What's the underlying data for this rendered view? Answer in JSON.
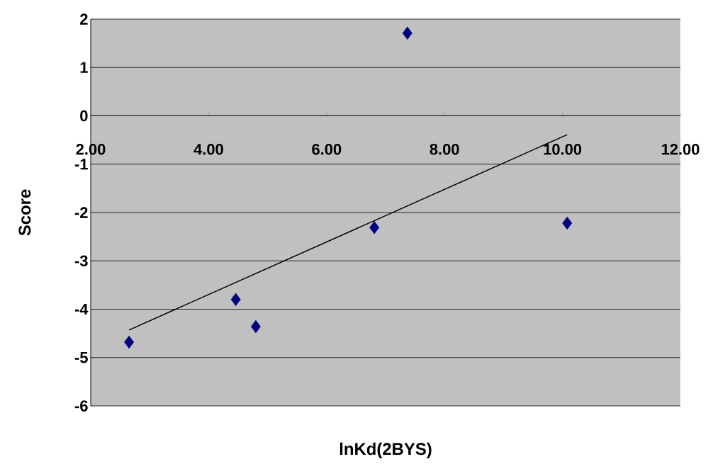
{
  "chart_data": {
    "type": "scatter",
    "ylabel": "Score",
    "xlabel": "lnKd(2BYS)",
    "series": [
      {
        "x": [
          2.65,
          4.46,
          4.8,
          6.81,
          7.37,
          10.08
        ],
        "values": [
          -4.68,
          -3.8,
          -4.36,
          -2.31,
          1.71,
          -2.22
        ],
        "color": "#000080",
        "marker": "diamond"
      },
      {
        "type": "line",
        "x": [
          2.65,
          10.08
        ],
        "values": [
          -4.43,
          -0.39
        ],
        "color": "#000000",
        "marker": "none",
        "line_style": "solid"
      }
    ],
    "xlim": [
      2,
      12
    ],
    "ylim": [
      -6,
      2
    ],
    "xticks": [
      {
        "value": 2,
        "label": "2.00"
      },
      {
        "value": 4,
        "label": "4.00"
      },
      {
        "value": 6,
        "label": "6.00"
      },
      {
        "value": 8,
        "label": "8.00"
      },
      {
        "value": 10,
        "label": "10.00"
      },
      {
        "value": 12,
        "label": "12.00"
      }
    ],
    "yticks": [
      -6,
      -5,
      -4,
      -3,
      -2,
      -1,
      0,
      1,
      2
    ],
    "grid": "y"
  }
}
